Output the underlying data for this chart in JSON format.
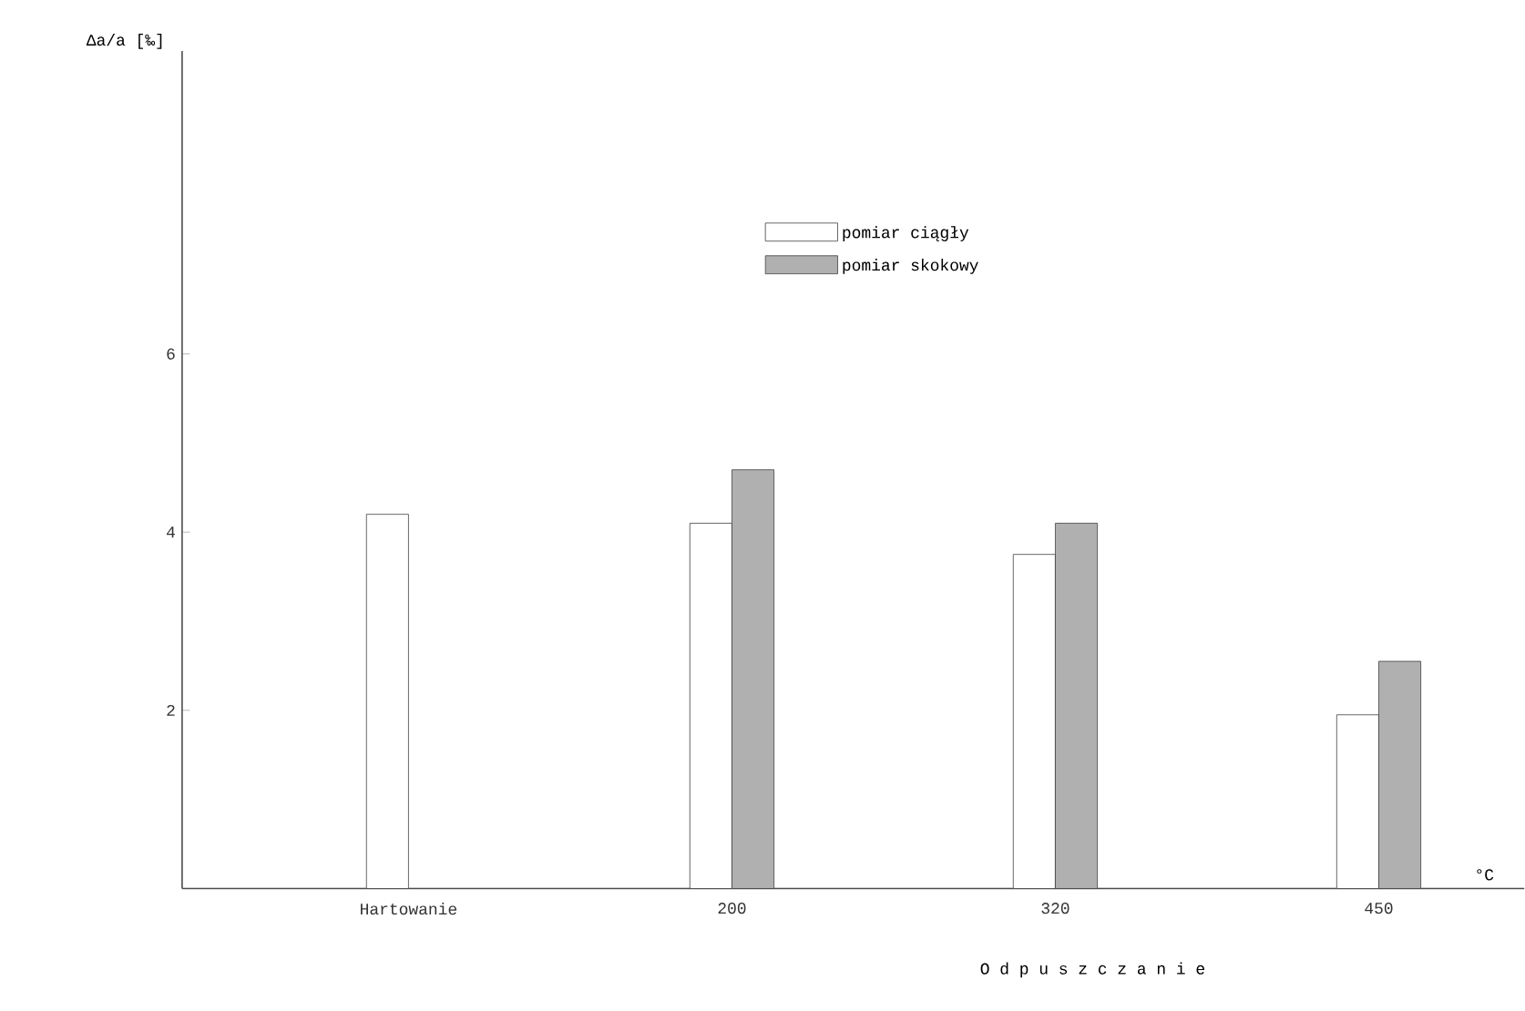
{
  "chart_data": {
    "type": "bar",
    "ylabel": "Δa/a [‰]",
    "xlabel": "O d p u s z c z a n i e",
    "categories": [
      "Hartowanie",
      "200",
      "320",
      "450"
    ],
    "series": [
      {
        "name": "pomiar ciągły",
        "color": "#ffffff",
        "values": [
          4.2,
          4.1,
          3.75,
          1.95
        ]
      },
      {
        "name": "pomiar skokowy",
        "color": "#b0b0b0",
        "values": [
          null,
          4.7,
          4.1,
          2.55
        ]
      }
    ],
    "ylim": [
      0,
      9.4
    ],
    "yticks": [
      2,
      4,
      6
    ],
    "legend": "top",
    "annotations": [
      "°C"
    ]
  }
}
